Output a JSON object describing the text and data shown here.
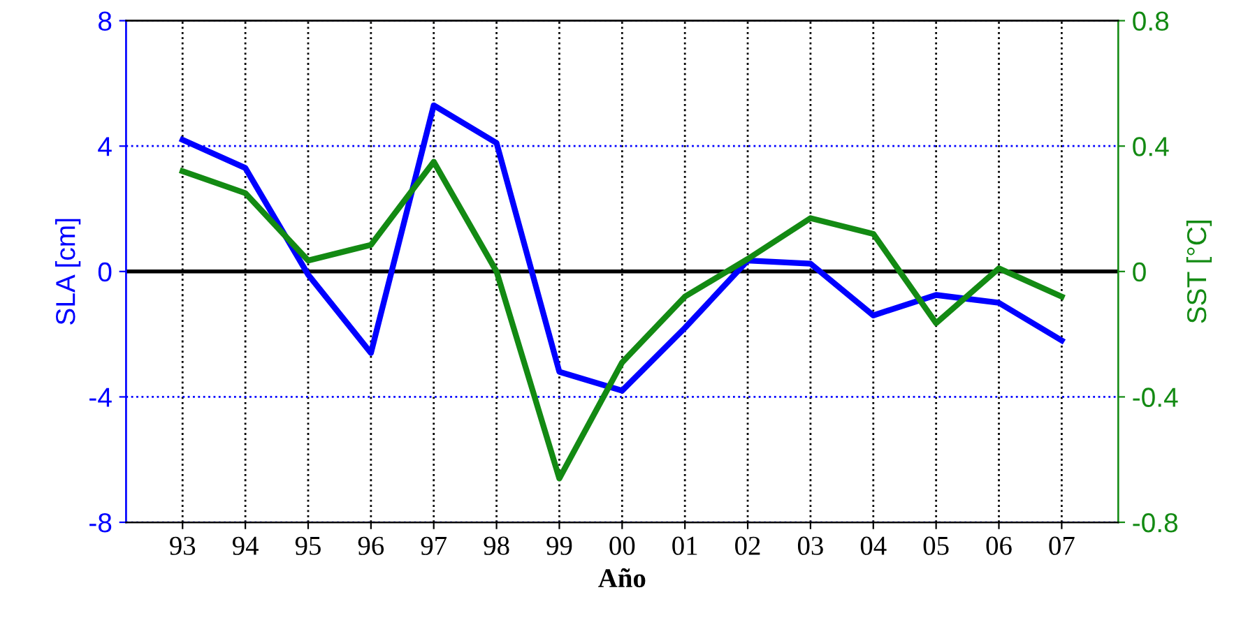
{
  "chart_data": {
    "type": "line",
    "xlabel": "Año",
    "ylabel": "SLA [cm]",
    "y2label": "SST [°C]",
    "categories": [
      "93",
      "94",
      "95",
      "96",
      "97",
      "98",
      "99",
      "00",
      "01",
      "02",
      "03",
      "04",
      "05",
      "06",
      "07"
    ],
    "series": [
      {
        "color": "#0000ff",
        "values": [
          4.2,
          3.3,
          -0.1,
          -2.6,
          5.3,
          4.1,
          -3.2,
          -3.8,
          -1.8,
          0.35,
          0.25,
          -1.4,
          -0.75,
          -1.0,
          -2.2
        ]
      },
      {
        "color": "#138a13",
        "axis": "y2",
        "values": [
          0.32,
          0.25,
          0.035,
          0.085,
          0.35,
          0.0,
          -0.66,
          -0.29,
          -0.08,
          0.04,
          0.17,
          0.12,
          -0.165,
          0.01,
          -0.08
        ]
      }
    ],
    "ylim": [
      -8,
      8
    ],
    "yticks": [
      -8,
      -4,
      0,
      4,
      8
    ],
    "y2lim": [
      -0.8,
      0.8
    ],
    "y2ticks": [
      -0.8,
      -0.4,
      0,
      0.4,
      0.8
    ],
    "ref_lines": [
      {
        "axis": "y",
        "value": 0,
        "color": "#000000",
        "line_style": "solid"
      }
    ],
    "grid": true,
    "marker": "none",
    "line_style": "solid"
  }
}
